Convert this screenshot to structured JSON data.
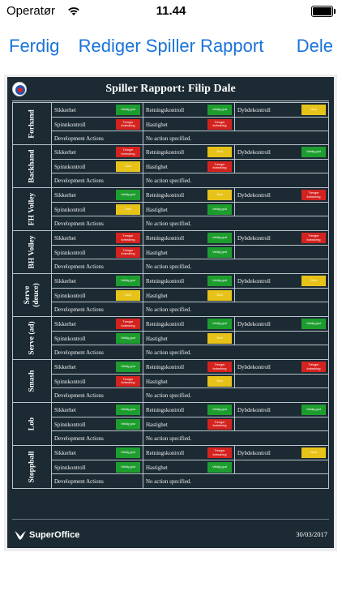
{
  "status_bar": {
    "carrier": "Operatør",
    "time": "11.44"
  },
  "nav": {
    "left": "Ferdig",
    "title": "Rediger Spiller Rapport",
    "right": "Dele"
  },
  "report": {
    "title": "Spiller Rapport: Filip Dale",
    "brand": "SuperOffice",
    "date": "30/03/2017",
    "dev_label": "Development Actions",
    "dev_value": "No action specified.",
    "colors": {
      "good": "#1e9d2f",
      "ok": "#e7c31a",
      "needs": "#d4231f"
    },
    "sections": [
      {
        "name": "Forhand",
        "rows": [
          [
            {
              "label": "Sikkerhet",
              "badge": "Veldig god",
              "status": "good"
            },
            {
              "label": "Retningskontroll",
              "badge": "Veldig god",
              "status": "good"
            },
            {
              "label": "Dybdekontroll",
              "badge": "God",
              "status": "ok"
            }
          ],
          [
            {
              "label": "Spinnkontroll",
              "badge": "Trenger forbedring",
              "status": "needs"
            },
            {
              "label": "Hastighet",
              "badge": "Trenger forbedring",
              "status": "needs"
            },
            {
              "label": "",
              "badge": "",
              "status": ""
            }
          ]
        ]
      },
      {
        "name": "Backhand",
        "rows": [
          [
            {
              "label": "Sikkerhet",
              "badge": "Trenger forbedring",
              "status": "needs"
            },
            {
              "label": "Retningskontroll",
              "badge": "God",
              "status": "ok"
            },
            {
              "label": "Dybdekontroll",
              "badge": "Veldig god",
              "status": "good"
            }
          ],
          [
            {
              "label": "Spinnkontroll",
              "badge": "God",
              "status": "ok"
            },
            {
              "label": "Hastighet",
              "badge": "Trenger forbedring",
              "status": "needs"
            },
            {
              "label": "",
              "badge": "",
              "status": ""
            }
          ]
        ]
      },
      {
        "name": "FH Volley",
        "rows": [
          [
            {
              "label": "Sikkerhet",
              "badge": "Veldig god",
              "status": "good"
            },
            {
              "label": "Retningskontroll",
              "badge": "God",
              "status": "ok"
            },
            {
              "label": "Dybdekontroll",
              "badge": "Trenger forbedring",
              "status": "needs"
            }
          ],
          [
            {
              "label": "Spinnkontroll",
              "badge": "God",
              "status": "ok"
            },
            {
              "label": "Hastighet",
              "badge": "Veldig god",
              "status": "good"
            },
            {
              "label": "",
              "badge": "",
              "status": ""
            }
          ]
        ]
      },
      {
        "name": "BH Volley",
        "rows": [
          [
            {
              "label": "Sikkerhet",
              "badge": "Trenger forbedring",
              "status": "needs"
            },
            {
              "label": "Retningskontroll",
              "badge": "Veldig god",
              "status": "good"
            },
            {
              "label": "Dybdekontroll",
              "badge": "Trenger forbedring",
              "status": "needs"
            }
          ],
          [
            {
              "label": "Spinnkontroll",
              "badge": "Trenger forbedring",
              "status": "needs"
            },
            {
              "label": "Hastighet",
              "badge": "Veldig god",
              "status": "good"
            },
            {
              "label": "",
              "badge": "",
              "status": ""
            }
          ]
        ]
      },
      {
        "name": "Serve\n(deuce)",
        "rows": [
          [
            {
              "label": "Sikkerhet",
              "badge": "Veldig god",
              "status": "good"
            },
            {
              "label": "Retningskontroll",
              "badge": "Veldig god",
              "status": "good"
            },
            {
              "label": "Dybdekontroll",
              "badge": "God",
              "status": "ok"
            }
          ],
          [
            {
              "label": "Spinnkontroll",
              "badge": "God",
              "status": "ok"
            },
            {
              "label": "Hastighet",
              "badge": "God",
              "status": "ok"
            },
            {
              "label": "",
              "badge": "",
              "status": ""
            }
          ]
        ]
      },
      {
        "name": "Serve (ad)",
        "rows": [
          [
            {
              "label": "Sikkerhet",
              "badge": "Trenger forbedring",
              "status": "needs"
            },
            {
              "label": "Retningskontroll",
              "badge": "Veldig god",
              "status": "good"
            },
            {
              "label": "Dybdekontroll",
              "badge": "Veldig god",
              "status": "good"
            }
          ],
          [
            {
              "label": "Spinnkontroll",
              "badge": "Veldig god",
              "status": "good"
            },
            {
              "label": "Hastighet",
              "badge": "God",
              "status": "ok"
            },
            {
              "label": "",
              "badge": "",
              "status": ""
            }
          ]
        ]
      },
      {
        "name": "Smash",
        "rows": [
          [
            {
              "label": "Sikkerhet",
              "badge": "Veldig god",
              "status": "good"
            },
            {
              "label": "Retningskontroll",
              "badge": "Trenger forbedring",
              "status": "needs"
            },
            {
              "label": "Dybdekontroll",
              "badge": "Trenger forbedring",
              "status": "needs"
            }
          ],
          [
            {
              "label": "Spinnkontroll",
              "badge": "Trenger forbedring",
              "status": "needs"
            },
            {
              "label": "Hastighet",
              "badge": "God",
              "status": "ok"
            },
            {
              "label": "",
              "badge": "",
              "status": ""
            }
          ]
        ]
      },
      {
        "name": "Lob",
        "rows": [
          [
            {
              "label": "Sikkerhet",
              "badge": "Veldig god",
              "status": "good"
            },
            {
              "label": "Retningskontroll",
              "badge": "Veldig god",
              "status": "good"
            },
            {
              "label": "Dybdekontroll",
              "badge": "Veldig god",
              "status": "good"
            }
          ],
          [
            {
              "label": "Spinnkontroll",
              "badge": "Veldig god",
              "status": "good"
            },
            {
              "label": "Hastighet",
              "badge": "Trenger forbedring",
              "status": "needs"
            },
            {
              "label": "",
              "badge": "",
              "status": ""
            }
          ]
        ]
      },
      {
        "name": "Stoppball",
        "rows": [
          [
            {
              "label": "Sikkerhet",
              "badge": "Veldig god",
              "status": "good"
            },
            {
              "label": "Retningskontroll",
              "badge": "Trenger forbedring",
              "status": "needs"
            },
            {
              "label": "Dybdekontroll",
              "badge": "God",
              "status": "ok"
            }
          ],
          [
            {
              "label": "Spinnkontroll",
              "badge": "Veldig god",
              "status": "good"
            },
            {
              "label": "Hastighet",
              "badge": "Veldig god",
              "status": "good"
            },
            {
              "label": "",
              "badge": "",
              "status": ""
            }
          ]
        ]
      }
    ]
  }
}
